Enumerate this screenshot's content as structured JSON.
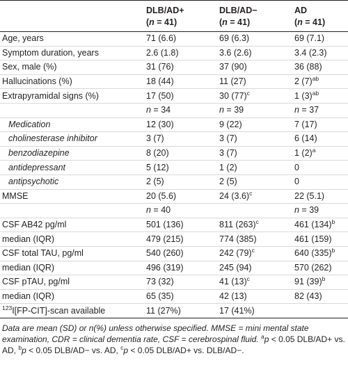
{
  "table": {
    "header": [
      {
        "name": "DLB/AD+",
        "count": [
          {
            "t": "("
          },
          {
            "i": "n"
          },
          {
            "t": " = 41)"
          }
        ]
      },
      {
        "name": "DLB/AD−",
        "count": [
          {
            "t": "("
          },
          {
            "i": "n"
          },
          {
            "t": " = 41)"
          }
        ]
      },
      {
        "name": "AD",
        "count": [
          {
            "t": "("
          },
          {
            "i": "n"
          },
          {
            "t": " = 41)"
          }
        ]
      }
    ],
    "rows": [
      {
        "cells": [
          [
            {
              "t": "Age, years"
            }
          ],
          [
            {
              "t": "71 (6.6)"
            }
          ],
          [
            {
              "t": "69 (6.3)"
            }
          ],
          [
            {
              "t": "69 (7.1)"
            }
          ]
        ]
      },
      {
        "cells": [
          [
            {
              "t": "Symptom duration, years"
            }
          ],
          [
            {
              "t": "2.6 (1.8)"
            }
          ],
          [
            {
              "t": "3.6 (2.6)"
            }
          ],
          [
            {
              "t": "3.4 (2.3)"
            }
          ]
        ]
      },
      {
        "cells": [
          [
            {
              "t": "Sex, male (%)"
            }
          ],
          [
            {
              "t": "31 (76)"
            }
          ],
          [
            {
              "t": "37 (90)"
            }
          ],
          [
            {
              "t": "36 (88)"
            }
          ]
        ]
      },
      {
        "cells": [
          [
            {
              "t": "Hallucinations (%)"
            }
          ],
          [
            {
              "t": "18 (44)"
            }
          ],
          [
            {
              "t": "11 (27)"
            }
          ],
          [
            {
              "t": "2 (7)"
            },
            {
              "sup": "ab"
            }
          ]
        ]
      },
      {
        "cells": [
          [
            {
              "t": "Extrapyramidal signs (%)"
            }
          ],
          [
            {
              "t": "17 (50)"
            }
          ],
          [
            {
              "t": "30 (77)"
            },
            {
              "sup": "c"
            }
          ],
          [
            {
              "t": "1 (3)"
            },
            {
              "sup": "ab"
            }
          ]
        ]
      },
      {
        "cells": [
          [],
          [
            {
              "i": "n"
            },
            {
              "t": " = 34"
            }
          ],
          [
            {
              "i": "n"
            },
            {
              "t": " = 39"
            }
          ],
          [
            {
              "i": "n"
            },
            {
              "t": " = 37"
            }
          ]
        ]
      },
      {
        "indent": true,
        "cells": [
          [
            {
              "i": "Medication"
            }
          ],
          [
            {
              "t": "12 (30)"
            }
          ],
          [
            {
              "t": "9 (22)"
            }
          ],
          [
            {
              "t": "7 (17)"
            }
          ]
        ]
      },
      {
        "indent": true,
        "cells": [
          [
            {
              "i": "cholinesterase inhibitor"
            }
          ],
          [
            {
              "t": "3 (7)"
            }
          ],
          [
            {
              "t": "3 (7)"
            }
          ],
          [
            {
              "t": "6 (14)"
            }
          ]
        ]
      },
      {
        "indent": true,
        "cells": [
          [
            {
              "i": "benzodiazepine"
            }
          ],
          [
            {
              "t": "8 (20)"
            }
          ],
          [
            {
              "t": "3 (7)"
            }
          ],
          [
            {
              "t": "1 (2)"
            },
            {
              "sup": "a"
            }
          ]
        ]
      },
      {
        "indent": true,
        "cells": [
          [
            {
              "i": "antidepressant"
            }
          ],
          [
            {
              "t": "5 (12)"
            }
          ],
          [
            {
              "t": "1 (2)"
            }
          ],
          [
            {
              "t": "0"
            }
          ]
        ]
      },
      {
        "indent": true,
        "cells": [
          [
            {
              "i": "antipsychotic"
            }
          ],
          [
            {
              "t": "2 (5)"
            }
          ],
          [
            {
              "t": "2 (5)"
            }
          ],
          [
            {
              "t": "0"
            }
          ]
        ]
      },
      {
        "cells": [
          [
            {
              "t": "MMSE"
            }
          ],
          [
            {
              "t": "20 (5.6)"
            }
          ],
          [
            {
              "t": "24 (3.6)"
            },
            {
              "sup": "c"
            }
          ],
          [
            {
              "t": "22 (5.1)"
            }
          ]
        ]
      },
      {
        "cells": [
          [],
          [
            {
              "i": "n"
            },
            {
              "t": " = 40"
            }
          ],
          [],
          [
            {
              "i": "n"
            },
            {
              "t": " = 39"
            }
          ]
        ]
      },
      {
        "cells": [
          [
            {
              "t": "CSF AB42 pg/ml"
            }
          ],
          [
            {
              "t": "501 (136)"
            }
          ],
          [
            {
              "t": "811 (263)"
            },
            {
              "sup": "c"
            }
          ],
          [
            {
              "t": "461 (134)"
            },
            {
              "sup": "b"
            }
          ]
        ]
      },
      {
        "cells": [
          [
            {
              "t": "median (IQR)"
            }
          ],
          [
            {
              "t": "479 (215)"
            }
          ],
          [
            {
              "t": "774 (385)"
            }
          ],
          [
            {
              "t": "461 (159)"
            }
          ]
        ]
      },
      {
        "cells": [
          [
            {
              "t": "CSF total TAU, pg/ml"
            }
          ],
          [
            {
              "t": "540 (260)"
            }
          ],
          [
            {
              "t": "242 (79)"
            },
            {
              "sup": "c"
            }
          ],
          [
            {
              "t": "640 (335)"
            },
            {
              "sup": "b"
            }
          ]
        ]
      },
      {
        "cells": [
          [
            {
              "t": "median (IQR)"
            }
          ],
          [
            {
              "t": "496 (319)"
            }
          ],
          [
            {
              "t": "245 (94)"
            }
          ],
          [
            {
              "t": "570 (262)"
            }
          ]
        ]
      },
      {
        "cells": [
          [
            {
              "t": "CSF pTAU, pg/ml"
            }
          ],
          [
            {
              "t": "73 (32)"
            }
          ],
          [
            {
              "t": "41 (13)"
            },
            {
              "sup": "c"
            }
          ],
          [
            {
              "t": "91 (39)"
            },
            {
              "sup": "b"
            }
          ]
        ]
      },
      {
        "cells": [
          [
            {
              "t": "median (IQR)"
            }
          ],
          [
            {
              "t": "65 (35)"
            }
          ],
          [
            {
              "t": "42 (13)"
            }
          ],
          [
            {
              "t": "82 (43)"
            }
          ]
        ]
      },
      {
        "cells": [
          [
            {
              "sup": "123"
            },
            {
              "t": "I[FP-CIT]-scan available"
            }
          ],
          [
            {
              "t": "11 (27%)"
            }
          ],
          [
            {
              "t": "17 (41%)"
            }
          ],
          []
        ]
      }
    ],
    "footnote": [
      {
        "i": "Data are mean (SD) or n(%) unless otherwise specified. MMSE = mini mental state examination, CDR = clinical dementia rate, CSF = cerebrospinal fluid."
      },
      {
        "t": " "
      },
      {
        "sup": "a"
      },
      {
        "i": "p"
      },
      {
        "t": " < 0.05 DLB/AD+ vs. AD, "
      },
      {
        "sup": "b"
      },
      {
        "i": "p"
      },
      {
        "t": " < 0.05 DLB/AD− vs. AD, "
      },
      {
        "sup": "c"
      },
      {
        "i": "p"
      },
      {
        "t": " < 0.05 DLB/AD+ vs. DLB/AD−."
      }
    ]
  }
}
